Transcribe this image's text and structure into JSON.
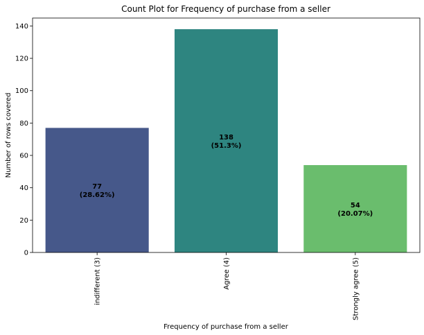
{
  "chart_data": {
    "type": "bar",
    "title": "Count Plot for Frequency of purchase from a seller",
    "xlabel": "Frequency of purchase from a seller",
    "ylabel": "Number of rows covered",
    "categories": [
      "indifferent (3)",
      "Agree (4)",
      "Strongly agree (5)"
    ],
    "values": [
      77,
      138,
      54
    ],
    "value_labels": [
      "77",
      "138",
      "54"
    ],
    "percent_labels": [
      "(28.62%)",
      "(51.3%)",
      "(20.07%)"
    ],
    "colors": [
      "#46588a",
      "#2e8580",
      "#6abd6d"
    ],
    "ylim": [
      0,
      144.9
    ],
    "yticks": [
      0,
      20,
      40,
      60,
      80,
      100,
      120,
      140
    ],
    "ytick_labels": [
      "0",
      "20",
      "40",
      "60",
      "80",
      "100",
      "120",
      "140"
    ],
    "grid": false,
    "legend": "none"
  }
}
